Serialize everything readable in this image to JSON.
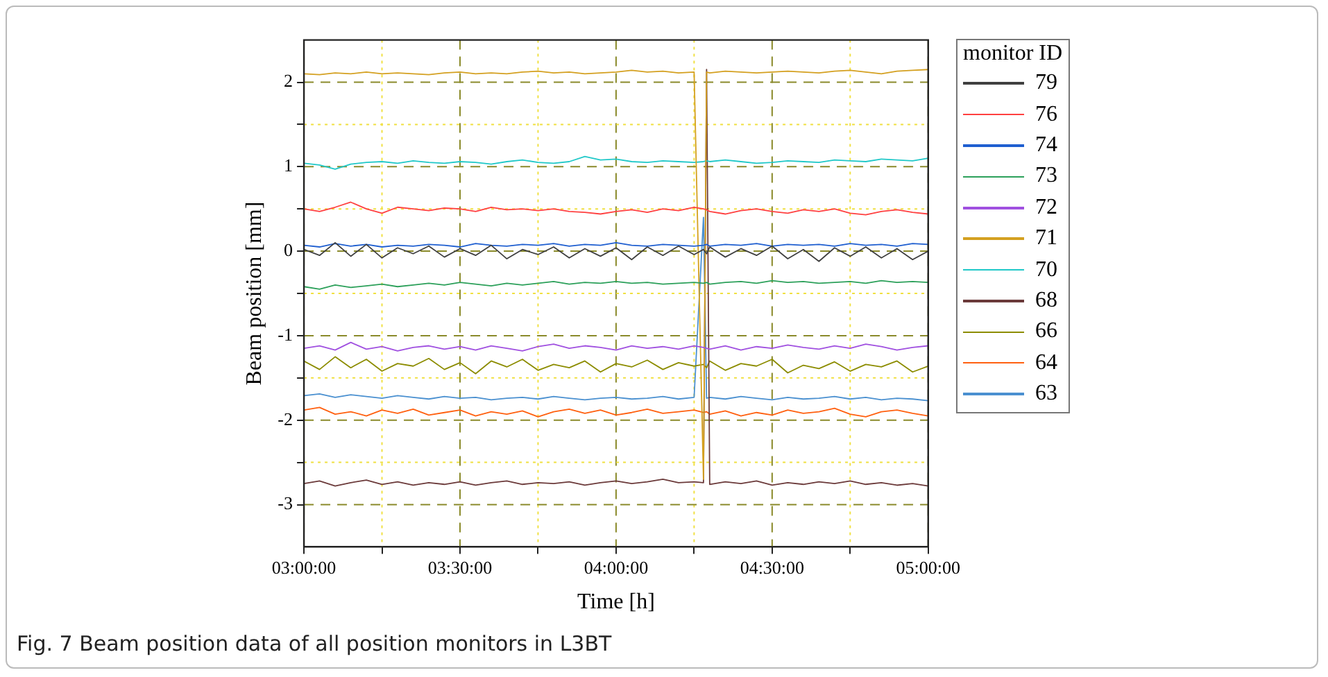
{
  "chart_data": {
    "type": "line",
    "xlabel": "Time [h]",
    "ylabel": "Beam position [mm]",
    "legend_title": "monitor ID",
    "legend": "top right",
    "grid": true,
    "marker": "none",
    "line_style": "solid",
    "annotations": [
      "Fig. 7 Beam position data of all position monitors in L3BT"
    ],
    "xlim": [
      3,
      5
    ],
    "ylim": [
      -3.5,
      2.5
    ],
    "xticks": [
      {
        "value": 3,
        "label": "03:00:00"
      },
      {
        "value": 3.25,
        "label": null
      },
      {
        "value": 3.5,
        "label": "03:30:00"
      },
      {
        "value": 3.75,
        "label": null
      },
      {
        "value": 4,
        "label": "04:00:00"
      },
      {
        "value": 4.25,
        "label": null
      },
      {
        "value": 4.5,
        "label": "04:30:00"
      },
      {
        "value": 4.75,
        "label": null
      },
      {
        "value": 5,
        "label": "05:00:00"
      }
    ],
    "yticks": [
      -3,
      {
        "value": -2.5,
        "label": null
      },
      -2,
      {
        "value": -1.5,
        "label": null
      },
      -1,
      {
        "value": -0.5,
        "label": null
      },
      0,
      {
        "value": 0.5,
        "label": null
      },
      1,
      {
        "value": 1.5,
        "label": null
      },
      2
    ],
    "x": [
      3,
      3.05,
      3.1,
      3.15,
      3.2,
      3.25,
      3.3,
      3.35,
      3.4,
      3.45,
      3.5,
      3.55,
      3.6,
      3.65,
      3.7,
      3.75,
      3.8,
      3.85,
      3.9,
      3.95,
      4,
      4.05,
      4.1,
      4.15,
      4.2,
      4.25,
      4.28,
      4.29,
      4.3,
      4.35,
      4.4,
      4.45,
      4.5,
      4.55,
      4.6,
      4.65,
      4.7,
      4.75,
      4.8,
      4.85,
      4.9,
      4.95,
      5
    ],
    "series": [
      {
        "name": "79",
        "color": "#404040",
        "values": [
          0.02,
          -0.05,
          0.1,
          -0.06,
          0.08,
          -0.08,
          0.04,
          -0.03,
          0.06,
          -0.07,
          0.03,
          -0.05,
          0.07,
          -0.09,
          0.02,
          -0.04,
          0.05,
          -0.08,
          0.03,
          -0.06,
          0.04,
          -0.1,
          0.05,
          -0.05,
          0.06,
          -0.04,
          0.02,
          -0.03,
          0.05,
          -0.07,
          0.03,
          -0.05,
          0.06,
          -0.09,
          0.02,
          -0.12,
          0.04,
          -0.06,
          0.05,
          -0.08,
          0.03,
          -0.1,
          0.0
        ]
      },
      {
        "name": "76",
        "color": "#ff4040",
        "values": [
          0.5,
          0.47,
          0.52,
          0.58,
          0.5,
          0.45,
          0.52,
          0.5,
          0.48,
          0.51,
          0.5,
          0.47,
          0.52,
          0.49,
          0.5,
          0.48,
          0.5,
          0.47,
          0.46,
          0.44,
          0.47,
          0.49,
          0.46,
          0.5,
          0.48,
          0.52,
          0.5,
          0.49,
          0.47,
          0.44,
          0.48,
          0.5,
          0.47,
          0.45,
          0.49,
          0.47,
          0.5,
          0.45,
          0.43,
          0.47,
          0.49,
          0.46,
          0.44
        ]
      },
      {
        "name": "74",
        "color": "#1f5fd0",
        "values": [
          0.07,
          0.05,
          0.09,
          0.06,
          0.08,
          0.05,
          0.07,
          0.06,
          0.08,
          0.07,
          0.05,
          0.09,
          0.07,
          0.06,
          0.08,
          0.07,
          0.09,
          0.06,
          0.08,
          0.07,
          0.1,
          0.07,
          0.06,
          0.08,
          0.07,
          0.06,
          0.07,
          0.08,
          0.06,
          0.08,
          0.07,
          0.09,
          0.06,
          0.08,
          0.07,
          0.08,
          0.06,
          0.09,
          0.07,
          0.08,
          0.06,
          0.09,
          0.08
        ]
      },
      {
        "name": "73",
        "color": "#2ca05a",
        "values": [
          -0.42,
          -0.45,
          -0.4,
          -0.43,
          -0.41,
          -0.39,
          -0.42,
          -0.4,
          -0.38,
          -0.4,
          -0.37,
          -0.39,
          -0.41,
          -0.38,
          -0.4,
          -0.38,
          -0.36,
          -0.39,
          -0.37,
          -0.38,
          -0.36,
          -0.38,
          -0.37,
          -0.39,
          -0.38,
          -0.37,
          -0.38,
          -0.37,
          -0.39,
          -0.37,
          -0.36,
          -0.38,
          -0.35,
          -0.37,
          -0.36,
          -0.38,
          -0.37,
          -0.36,
          -0.38,
          -0.35,
          -0.37,
          -0.36,
          -0.37
        ]
      },
      {
        "name": "72",
        "color": "#a050e0",
        "values": [
          -1.15,
          -1.12,
          -1.17,
          -1.08,
          -1.16,
          -1.13,
          -1.18,
          -1.14,
          -1.12,
          -1.16,
          -1.13,
          -1.17,
          -1.12,
          -1.15,
          -1.18,
          -1.13,
          -1.1,
          -1.15,
          -1.12,
          -1.14,
          -1.17,
          -1.12,
          -1.15,
          -1.13,
          -1.16,
          -1.12,
          -1.14,
          -1.15,
          -1.16,
          -1.12,
          -1.17,
          -1.13,
          -1.15,
          -1.11,
          -1.14,
          -1.16,
          -1.12,
          -1.15,
          -1.1,
          -1.13,
          -1.17,
          -1.14,
          -1.12
        ]
      },
      {
        "name": "71",
        "color": "#d4a020",
        "values": [
          2.1,
          2.09,
          2.11,
          2.1,
          2.12,
          2.1,
          2.11,
          2.1,
          2.09,
          2.11,
          2.12,
          2.1,
          2.11,
          2.1,
          2.12,
          2.13,
          2.11,
          2.12,
          2.1,
          2.11,
          2.12,
          2.14,
          2.12,
          2.13,
          2.11,
          2.12,
          -2.7,
          2.12,
          2.11,
          2.13,
          2.12,
          2.11,
          2.12,
          2.13,
          2.12,
          2.11,
          2.13,
          2.14,
          2.12,
          2.1,
          2.13,
          2.14,
          2.15
        ]
      },
      {
        "name": "70",
        "color": "#20c8c8",
        "values": [
          1.04,
          1.02,
          0.97,
          1.03,
          1.05,
          1.06,
          1.04,
          1.07,
          1.05,
          1.04,
          1.06,
          1.05,
          1.03,
          1.06,
          1.08,
          1.05,
          1.04,
          1.06,
          1.12,
          1.08,
          1.09,
          1.06,
          1.05,
          1.07,
          1.06,
          1.05,
          1.06,
          1.07,
          1.06,
          1.08,
          1.06,
          1.04,
          1.05,
          1.07,
          1.06,
          1.05,
          1.08,
          1.07,
          1.06,
          1.09,
          1.08,
          1.07,
          1.1
        ]
      },
      {
        "name": "68",
        "color": "#6b3a3a",
        "values": [
          -2.75,
          -2.72,
          -2.78,
          -2.74,
          -2.71,
          -2.76,
          -2.73,
          -2.77,
          -2.74,
          -2.76,
          -2.73,
          -2.77,
          -2.74,
          -2.72,
          -2.76,
          -2.74,
          -2.75,
          -2.73,
          -2.77,
          -2.74,
          -2.72,
          -2.75,
          -2.73,
          -2.7,
          -2.74,
          -2.73,
          -2.74,
          2.15,
          -2.76,
          -2.73,
          -2.75,
          -2.72,
          -2.77,
          -2.74,
          -2.76,
          -2.73,
          -2.75,
          -2.72,
          -2.76,
          -2.74,
          -2.77,
          -2.75,
          -2.78
        ]
      },
      {
        "name": "66",
        "color": "#8c8c00",
        "values": [
          -1.3,
          -1.4,
          -1.25,
          -1.38,
          -1.28,
          -1.42,
          -1.33,
          -1.36,
          -1.27,
          -1.4,
          -1.32,
          -1.45,
          -1.3,
          -1.37,
          -1.28,
          -1.41,
          -1.34,
          -1.38,
          -1.3,
          -1.43,
          -1.33,
          -1.37,
          -1.29,
          -1.4,
          -1.32,
          -1.36,
          -1.34,
          -1.38,
          -1.3,
          -1.41,
          -1.33,
          -1.36,
          -1.28,
          -1.44,
          -1.35,
          -1.39,
          -1.31,
          -1.42,
          -1.34,
          -1.37,
          -1.3,
          -1.43,
          -1.36
        ]
      },
      {
        "name": "64",
        "color": "#ff6010",
        "values": [
          -1.88,
          -1.85,
          -1.93,
          -1.9,
          -1.95,
          -1.88,
          -1.92,
          -1.87,
          -1.94,
          -1.91,
          -1.88,
          -1.95,
          -1.9,
          -1.93,
          -1.89,
          -1.96,
          -1.9,
          -1.87,
          -1.92,
          -1.88,
          -1.94,
          -1.91,
          -1.87,
          -1.92,
          -1.9,
          -1.88,
          -1.91,
          -1.9,
          -1.93,
          -1.89,
          -1.95,
          -1.91,
          -1.94,
          -1.88,
          -1.92,
          -1.9,
          -1.86,
          -1.93,
          -1.96,
          -1.9,
          -1.88,
          -1.92,
          -1.95
        ]
      },
      {
        "name": "63",
        "color": "#4a90d0",
        "values": [
          -1.71,
          -1.69,
          -1.73,
          -1.7,
          -1.72,
          -1.74,
          -1.71,
          -1.73,
          -1.75,
          -1.72,
          -1.74,
          -1.73,
          -1.76,
          -1.74,
          -1.73,
          -1.75,
          -1.72,
          -1.74,
          -1.76,
          -1.74,
          -1.73,
          -1.75,
          -1.74,
          -1.72,
          -1.75,
          -1.73,
          0.4,
          -1.74,
          -1.73,
          -1.75,
          -1.72,
          -1.74,
          -1.76,
          -1.73,
          -1.75,
          -1.74,
          -1.72,
          -1.75,
          -1.73,
          -1.76,
          -1.74,
          -1.75,
          -1.77
        ]
      }
    ]
  }
}
